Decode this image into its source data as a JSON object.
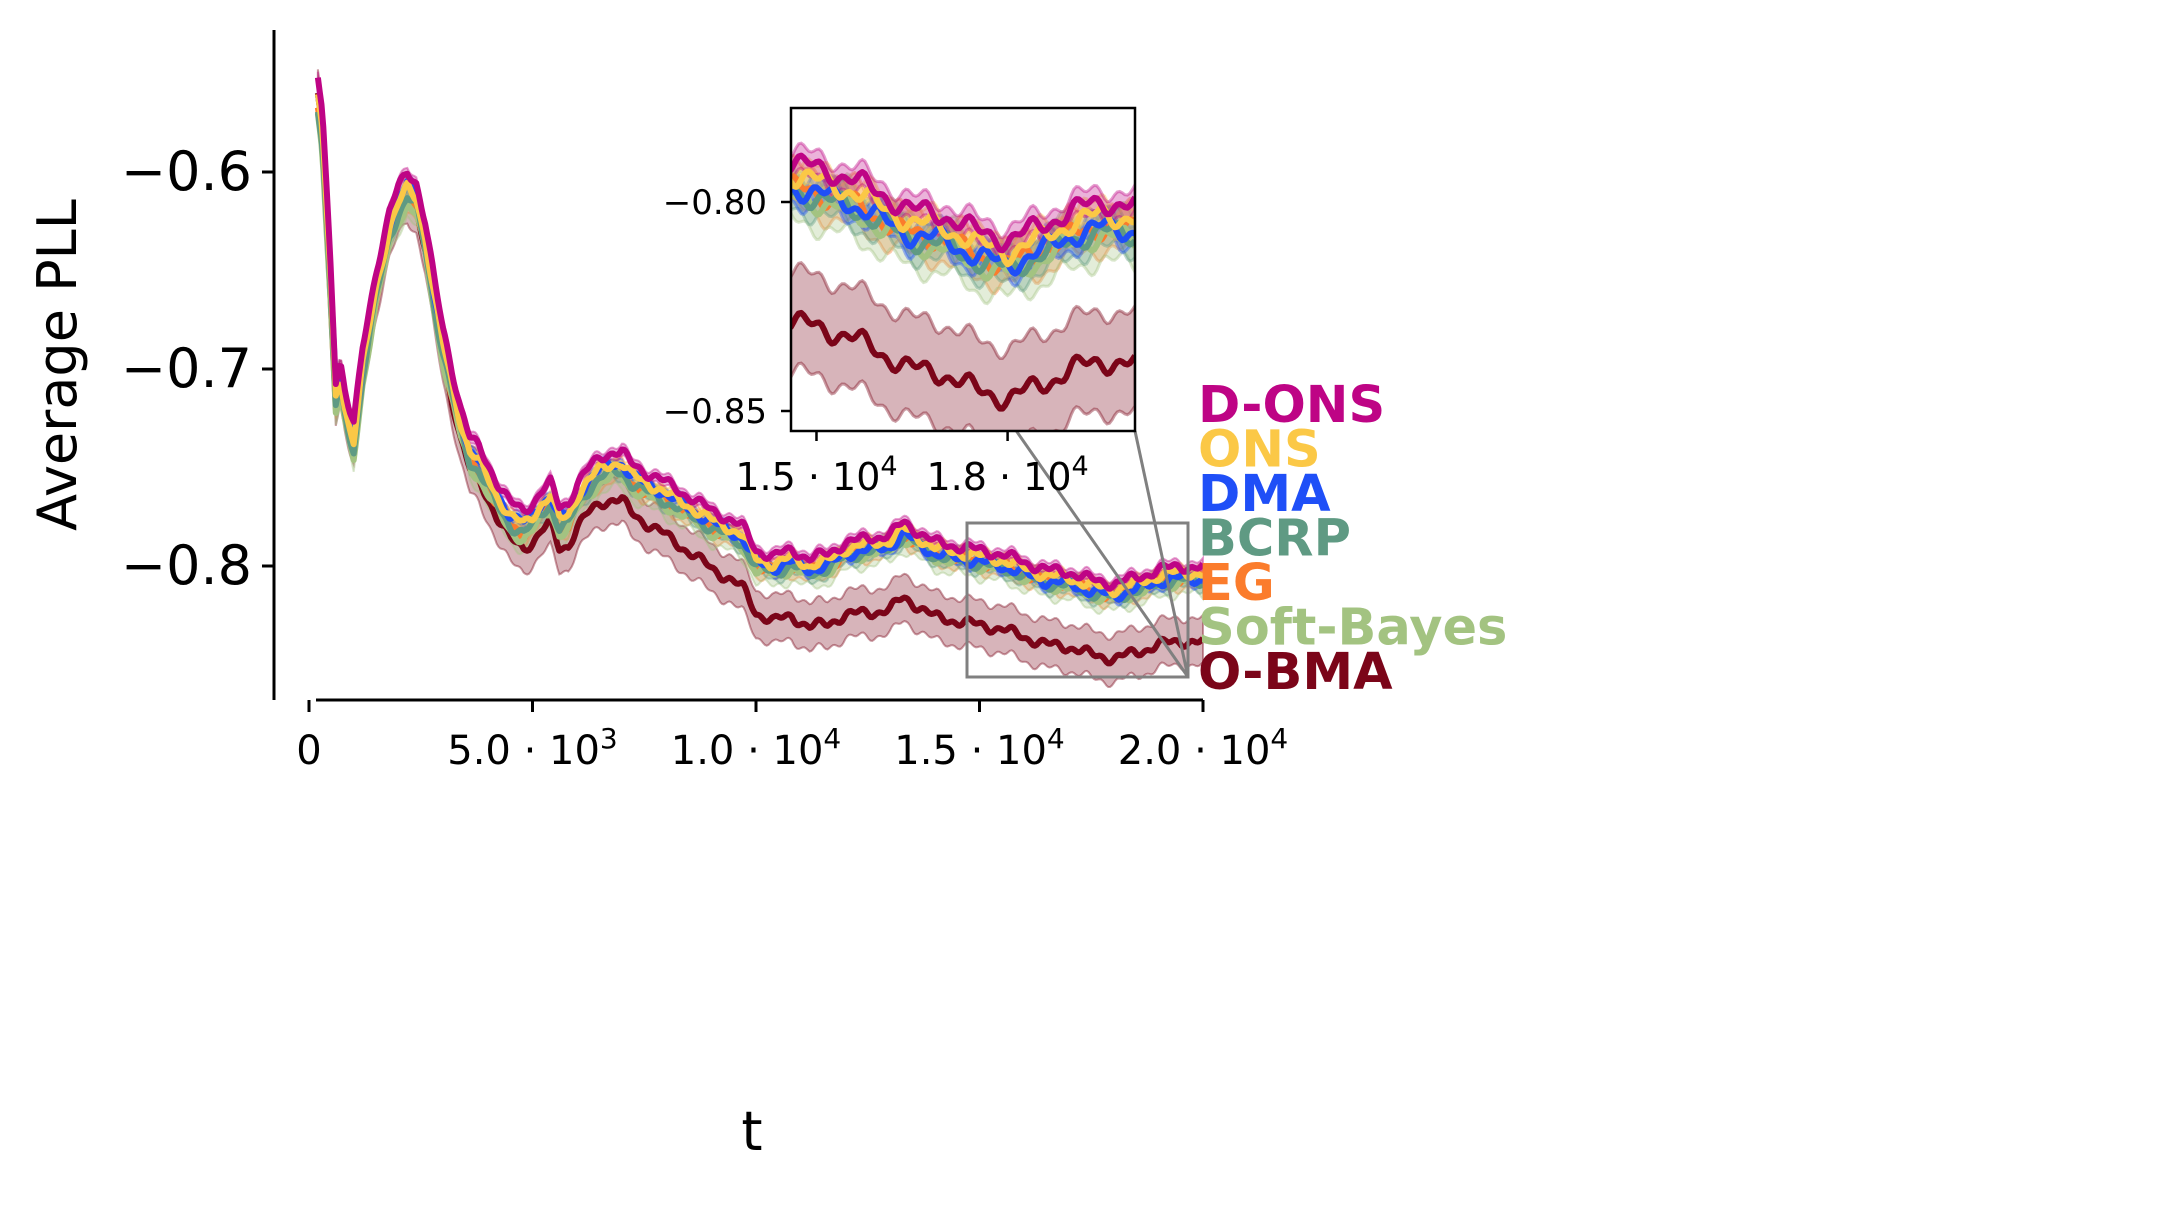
{
  "chart_data": {
    "type": "line",
    "xlabel": "t",
    "ylabel": "Average PLL",
    "xlim": [
      0,
      20000
    ],
    "ylim": [
      -0.867,
      -0.53
    ],
    "x_ticks": [
      0,
      5000,
      10000,
      15000,
      20000
    ],
    "x_tick_labels": [
      {
        "mantissa": "0",
        "exp": ""
      },
      {
        "mantissa": "5.0 · 10",
        "exp": "3"
      },
      {
        "mantissa": "1.0 · 10",
        "exp": "4"
      },
      {
        "mantissa": "1.5 · 10",
        "exp": "4"
      },
      {
        "mantissa": "2.0 · 10",
        "exp": "4"
      }
    ],
    "y_ticks": [
      -0.6,
      -0.7,
      -0.8
    ],
    "y_tick_labels": [
      "−0.6",
      "−0.7",
      "−0.8"
    ],
    "grid": false,
    "legend_position": "right",
    "legend_order": [
      "D-ONS",
      "ONS",
      "DMA",
      "BCRP",
      "EG",
      "Soft-Bayes",
      "O-BMA"
    ],
    "base_curve": {
      "x": [
        200,
        300,
        500,
        600,
        700,
        800,
        900,
        1000,
        1200,
        1500,
        1800,
        2000,
        2200,
        2400,
        2600,
        2800,
        3000,
        3200,
        3400,
        3600,
        3800,
        4000,
        4200,
        4500,
        4800,
        5000,
        5200,
        5400,
        5600,
        5800,
        6000,
        6200,
        6500,
        6800,
        7000,
        7200,
        7500,
        7800,
        8000,
        8300,
        8600,
        9000,
        9400,
        9700,
        10000,
        10400,
        10800,
        11200,
        11600,
        12000,
        12500,
        13000,
        13300,
        13600,
        14000,
        14500,
        15000,
        15500,
        16000,
        16500,
        17000,
        17500,
        18000,
        18500,
        19000,
        19500,
        20000
      ],
      "y": [
        -0.553,
        -0.57,
        -0.655,
        -0.705,
        -0.695,
        -0.71,
        -0.72,
        -0.728,
        -0.69,
        -0.65,
        -0.62,
        -0.608,
        -0.6,
        -0.605,
        -0.625,
        -0.655,
        -0.68,
        -0.7,
        -0.72,
        -0.735,
        -0.74,
        -0.748,
        -0.757,
        -0.768,
        -0.772,
        -0.768,
        -0.762,
        -0.758,
        -0.77,
        -0.768,
        -0.758,
        -0.752,
        -0.745,
        -0.742,
        -0.742,
        -0.748,
        -0.752,
        -0.755,
        -0.758,
        -0.762,
        -0.766,
        -0.772,
        -0.776,
        -0.78,
        -0.792,
        -0.795,
        -0.792,
        -0.796,
        -0.794,
        -0.788,
        -0.786,
        -0.784,
        -0.778,
        -0.782,
        -0.788,
        -0.79,
        -0.792,
        -0.794,
        -0.798,
        -0.802,
        -0.803,
        -0.807,
        -0.809,
        -0.806,
        -0.802,
        -0.8,
        -0.801
      ]
    },
    "series": [
      {
        "name": "O-BMA",
        "color": "#7b0519",
        "offset_start": -0.008,
        "offset_end": -0.038,
        "band": 0.012
      },
      {
        "name": "EG",
        "color": "#fb7c2c",
        "offset_start": -0.015,
        "offset_end": -0.006,
        "band": 0.005
      },
      {
        "name": "Soft-Bayes",
        "color": "#a3c381",
        "offset_start": -0.018,
        "offset_end": -0.008,
        "band": 0.006
      },
      {
        "name": "BCRP",
        "color": "#5f9a83",
        "offset_start": -0.014,
        "offset_end": -0.007,
        "band": 0.004
      },
      {
        "name": "DMA",
        "color": "#1f4ff7",
        "offset_start": -0.006,
        "offset_end": -0.006,
        "band": 0.003
      },
      {
        "name": "ONS",
        "color": "#fbc846",
        "offset_start": -0.009,
        "offset_end": -0.003,
        "band": 0.003
      },
      {
        "name": "D-ONS",
        "color": "#be0485",
        "offset_start": 0.0,
        "offset_end": 0.0,
        "band": 0.003
      }
    ],
    "inset": {
      "xlim": [
        14600,
        20000
      ],
      "ylim": [
        -0.855,
        -0.777
      ],
      "x_ticks": [
        15000,
        18000
      ],
      "x_tick_labels": [
        {
          "mantissa": "1.5 · 10",
          "exp": "4"
        },
        {
          "mantissa": "1.8 · 10",
          "exp": "4"
        }
      ],
      "y_ticks": [
        -0.8,
        -0.85
      ],
      "y_tick_labels": [
        "−0.80",
        "−0.85"
      ]
    }
  }
}
